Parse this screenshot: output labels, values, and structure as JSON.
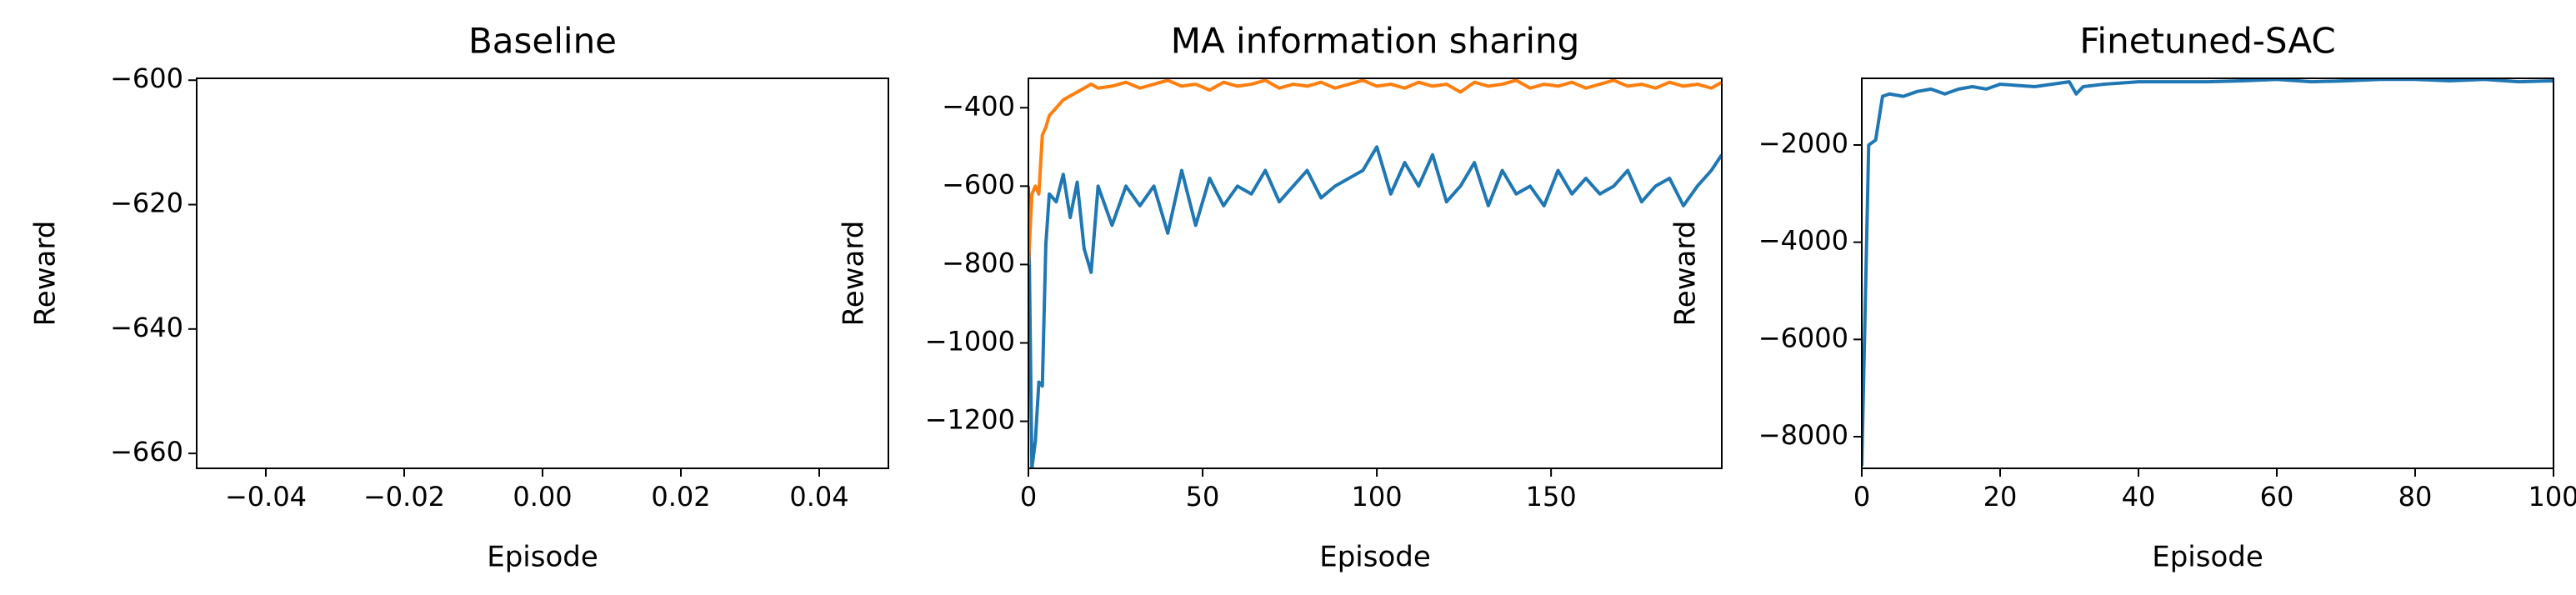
{
  "chart_data": [
    {
      "type": "line",
      "title": "Baseline",
      "xlabel": "Episode",
      "ylabel": "Reward",
      "xlim": [
        -0.05,
        0.05
      ],
      "ylim": [
        -662.4,
        -599.7
      ],
      "xticks": [
        {
          "value": -0.04,
          "label": "−0.04"
        },
        {
          "value": -0.02,
          "label": "−0.02"
        },
        {
          "value": 0,
          "label": "0.00"
        },
        {
          "value": 0.02,
          "label": "0.02"
        },
        {
          "value": 0.04,
          "label": "0.04"
        }
      ],
      "yticks": [
        {
          "value": -600,
          "label": "−600"
        },
        {
          "value": -620,
          "label": "−620"
        },
        {
          "value": -640,
          "label": "−640"
        },
        {
          "value": -660,
          "label": "−660"
        }
      ],
      "x": [],
      "series": []
    },
    {
      "type": "line",
      "title": "MA information sharing",
      "xlabel": "Episode",
      "ylabel": "Reward",
      "xlim": [
        0,
        199
      ],
      "ylim": [
        -1320,
        -325
      ],
      "xticks": [
        0,
        50,
        100,
        150
      ],
      "yticks": [
        {
          "value": -400,
          "label": "−400"
        },
        {
          "value": -600,
          "label": "−600"
        },
        {
          "value": -800,
          "label": "−800"
        },
        {
          "value": -1000,
          "label": "−1000"
        },
        {
          "value": -1200,
          "label": "−1200"
        }
      ],
      "x": [
        0,
        1,
        2,
        3,
        4,
        5,
        6,
        8,
        10,
        12,
        14,
        16,
        18,
        20,
        24,
        28,
        32,
        36,
        40,
        44,
        48,
        52,
        56,
        60,
        64,
        68,
        72,
        76,
        80,
        84,
        88,
        92,
        96,
        100,
        104,
        108,
        112,
        116,
        120,
        124,
        128,
        132,
        136,
        140,
        144,
        148,
        152,
        156,
        160,
        164,
        168,
        172,
        176,
        180,
        184,
        188,
        192,
        196,
        199
      ],
      "series": [
        {
          "color": "#1f77b4",
          "values": [
            -600,
            -1320,
            -1250,
            -1100,
            -1110,
            -750,
            -620,
            -640,
            -570,
            -680,
            -590,
            -760,
            -820,
            -600,
            -700,
            -600,
            -650,
            -600,
            -720,
            -560,
            -700,
            -580,
            -650,
            -600,
            -620,
            -560,
            -640,
            -600,
            -560,
            -630,
            -600,
            -580,
            -560,
            -500,
            -620,
            -540,
            -600,
            -520,
            -640,
            -600,
            -540,
            -650,
            -560,
            -620,
            -600,
            -650,
            -560,
            -620,
            -580,
            -620,
            -600,
            -560,
            -640,
            -600,
            -580,
            -650,
            -600,
            -560,
            -520
          ]
        },
        {
          "color": "#ff7f0e",
          "values": [
            -800,
            -620,
            -600,
            -620,
            -470,
            -450,
            -420,
            -400,
            -380,
            -370,
            -360,
            -350,
            -340,
            -350,
            -345,
            -335,
            -350,
            -340,
            -330,
            -345,
            -340,
            -355,
            -335,
            -345,
            -340,
            -330,
            -350,
            -340,
            -345,
            -335,
            -350,
            -340,
            -330,
            -345,
            -340,
            -350,
            -335,
            -345,
            -340,
            -360,
            -335,
            -345,
            -340,
            -330,
            -350,
            -340,
            -345,
            -335,
            -350,
            -340,
            -330,
            -345,
            -340,
            -350,
            -335,
            -345,
            -340,
            -350,
            -335
          ]
        }
      ]
    },
    {
      "type": "line",
      "title": "Finetuned-SAC",
      "xlabel": "Episode",
      "ylabel": "Reward",
      "xlim": [
        0,
        100
      ],
      "ylim": [
        -8651,
        -629
      ],
      "xticks": [
        0,
        20,
        40,
        60,
        80,
        100
      ],
      "yticks": [
        {
          "value": -2000,
          "label": "−2000"
        },
        {
          "value": -4000,
          "label": "−4000"
        },
        {
          "value": -6000,
          "label": "−6000"
        },
        {
          "value": -8000,
          "label": "−8000"
        }
      ],
      "x": [
        0,
        1,
        2,
        3,
        4,
        6,
        8,
        10,
        12,
        14,
        16,
        18,
        20,
        25,
        30,
        31,
        32,
        35,
        40,
        45,
        50,
        55,
        60,
        65,
        70,
        75,
        80,
        85,
        90,
        95,
        100
      ],
      "series": [
        {
          "color": "#1f77b4",
          "values": [
            -8600,
            -2000,
            -1900,
            -1000,
            -950,
            -1000,
            -900,
            -850,
            -950,
            -850,
            -800,
            -850,
            -750,
            -800,
            -700,
            -950,
            -800,
            -750,
            -700,
            -700,
            -700,
            -680,
            -650,
            -700,
            -680,
            -650,
            -650,
            -680,
            -650,
            -700,
            -680
          ]
        }
      ]
    }
  ]
}
